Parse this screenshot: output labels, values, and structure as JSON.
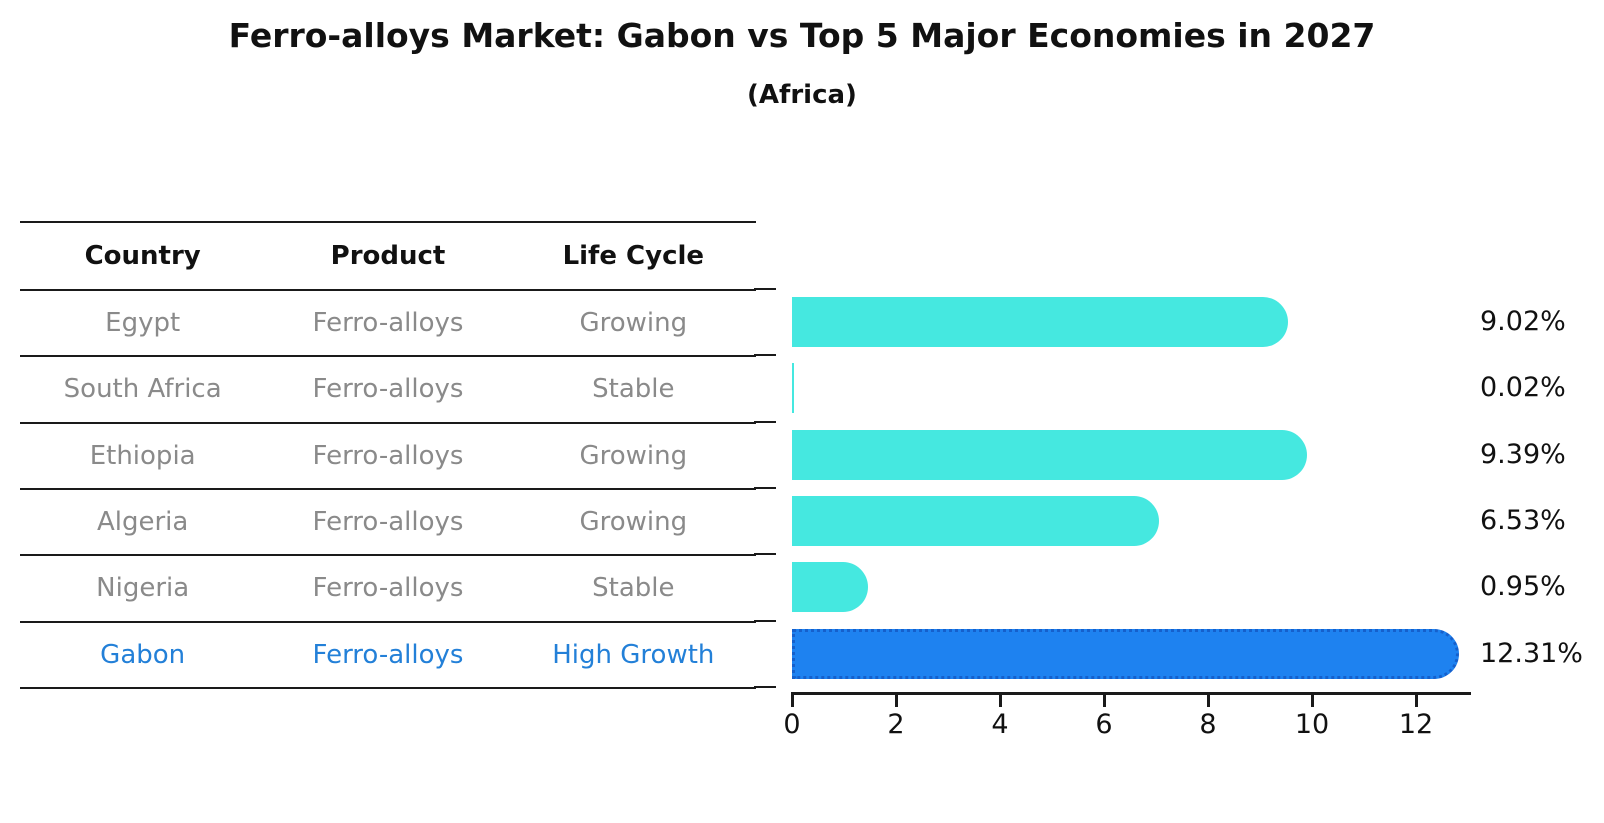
{
  "title": "Ferro-alloys Market: Gabon vs Top 5 Major Economies in 2027",
  "subtitle": "(Africa)",
  "table": {
    "headers": [
      "Country",
      "Product",
      "Life Cycle"
    ],
    "rows": [
      {
        "country": "Egypt",
        "product": "Ferro-alloys",
        "life_cycle": "Growing",
        "value_label": "9.02%",
        "value": 9.02,
        "highlight": false
      },
      {
        "country": "South Africa",
        "product": "Ferro-alloys",
        "life_cycle": "Stable",
        "value_label": "0.02%",
        "value": 0.02,
        "highlight": false
      },
      {
        "country": "Ethiopia",
        "product": "Ferro-alloys",
        "life_cycle": "Growing",
        "value_label": "9.39%",
        "value": 9.39,
        "highlight": false
      },
      {
        "country": "Algeria",
        "product": "Ferro-alloys",
        "life_cycle": "Growing",
        "value_label": "6.53%",
        "value": 6.53,
        "highlight": false
      },
      {
        "country": "Nigeria",
        "product": "Ferro-alloys",
        "life_cycle": "Stable",
        "value_label": "0.95%",
        "value": 0.95,
        "highlight": false
      },
      {
        "country": "Gabon",
        "product": "Ferro-alloys",
        "life_cycle": "High Growth",
        "value_label": "12.31%",
        "value": 12.31,
        "highlight": true
      }
    ]
  },
  "chart_data": {
    "type": "bar",
    "orientation": "horizontal",
    "title": "Ferro-alloys Market: Gabon vs Top 5 Major Economies in 2027",
    "subtitle": "(Africa)",
    "categories": [
      "Egypt",
      "South Africa",
      "Ethiopia",
      "Algeria",
      "Nigeria",
      "Gabon"
    ],
    "values": [
      9.02,
      0.02,
      9.39,
      6.53,
      0.95,
      12.31
    ],
    "value_labels": [
      "9.02%",
      "0.02%",
      "9.39%",
      "6.53%",
      "0.95%",
      "12.31%"
    ],
    "highlight_category": "Gabon",
    "xlabel": "",
    "ylabel": "",
    "xlim": [
      0,
      13
    ],
    "xticks": [
      0,
      2,
      4,
      6,
      8,
      10,
      12
    ],
    "grid": false,
    "legend": false,
    "colors": {
      "bar": "#45E8E0",
      "highlight_bar": "#1E82F0",
      "highlight_border": "#1560CC",
      "highlight_text": "#2380D8",
      "row_text": "#8A8A8A",
      "header_text": "#111111",
      "axis": "#1A1A1A"
    }
  }
}
